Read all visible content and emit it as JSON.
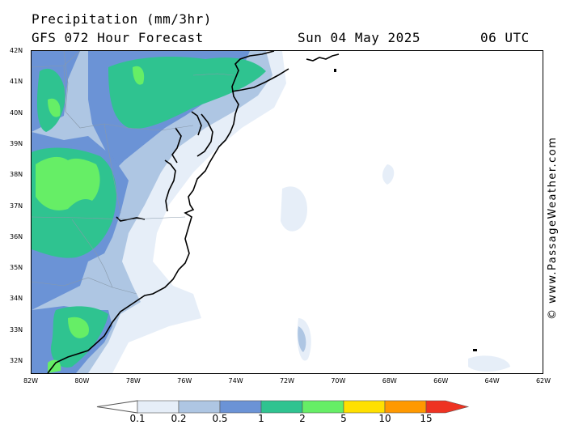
{
  "title": "Precipitation (mm/3hr)",
  "subtitle": "GFS 072 Hour Forecast",
  "valid_date": "Sun 04 May 2025",
  "valid_time": "06 UTC",
  "watermark": "© www.PassageWeather.com",
  "lat_labels": [
    "42N",
    "41N",
    "40N",
    "39N",
    "38N",
    "37N",
    "36N",
    "35N",
    "34N",
    "33N",
    "32N"
  ],
  "lon_labels": [
    "82W",
    "80W",
    "78W",
    "76W",
    "74W",
    "72W",
    "70W",
    "68W",
    "66W",
    "64W",
    "62W"
  ],
  "legend": {
    "thresholds": [
      "0.1",
      "0.2",
      "0.5",
      "1",
      "2",
      "5",
      "10",
      "15"
    ],
    "colors": [
      "#e6eef8",
      "#aec6e3",
      "#6b93d6",
      "#2fc390",
      "#66ee66",
      "#ffe000",
      "#ff9900",
      "#ee3322"
    ]
  }
}
